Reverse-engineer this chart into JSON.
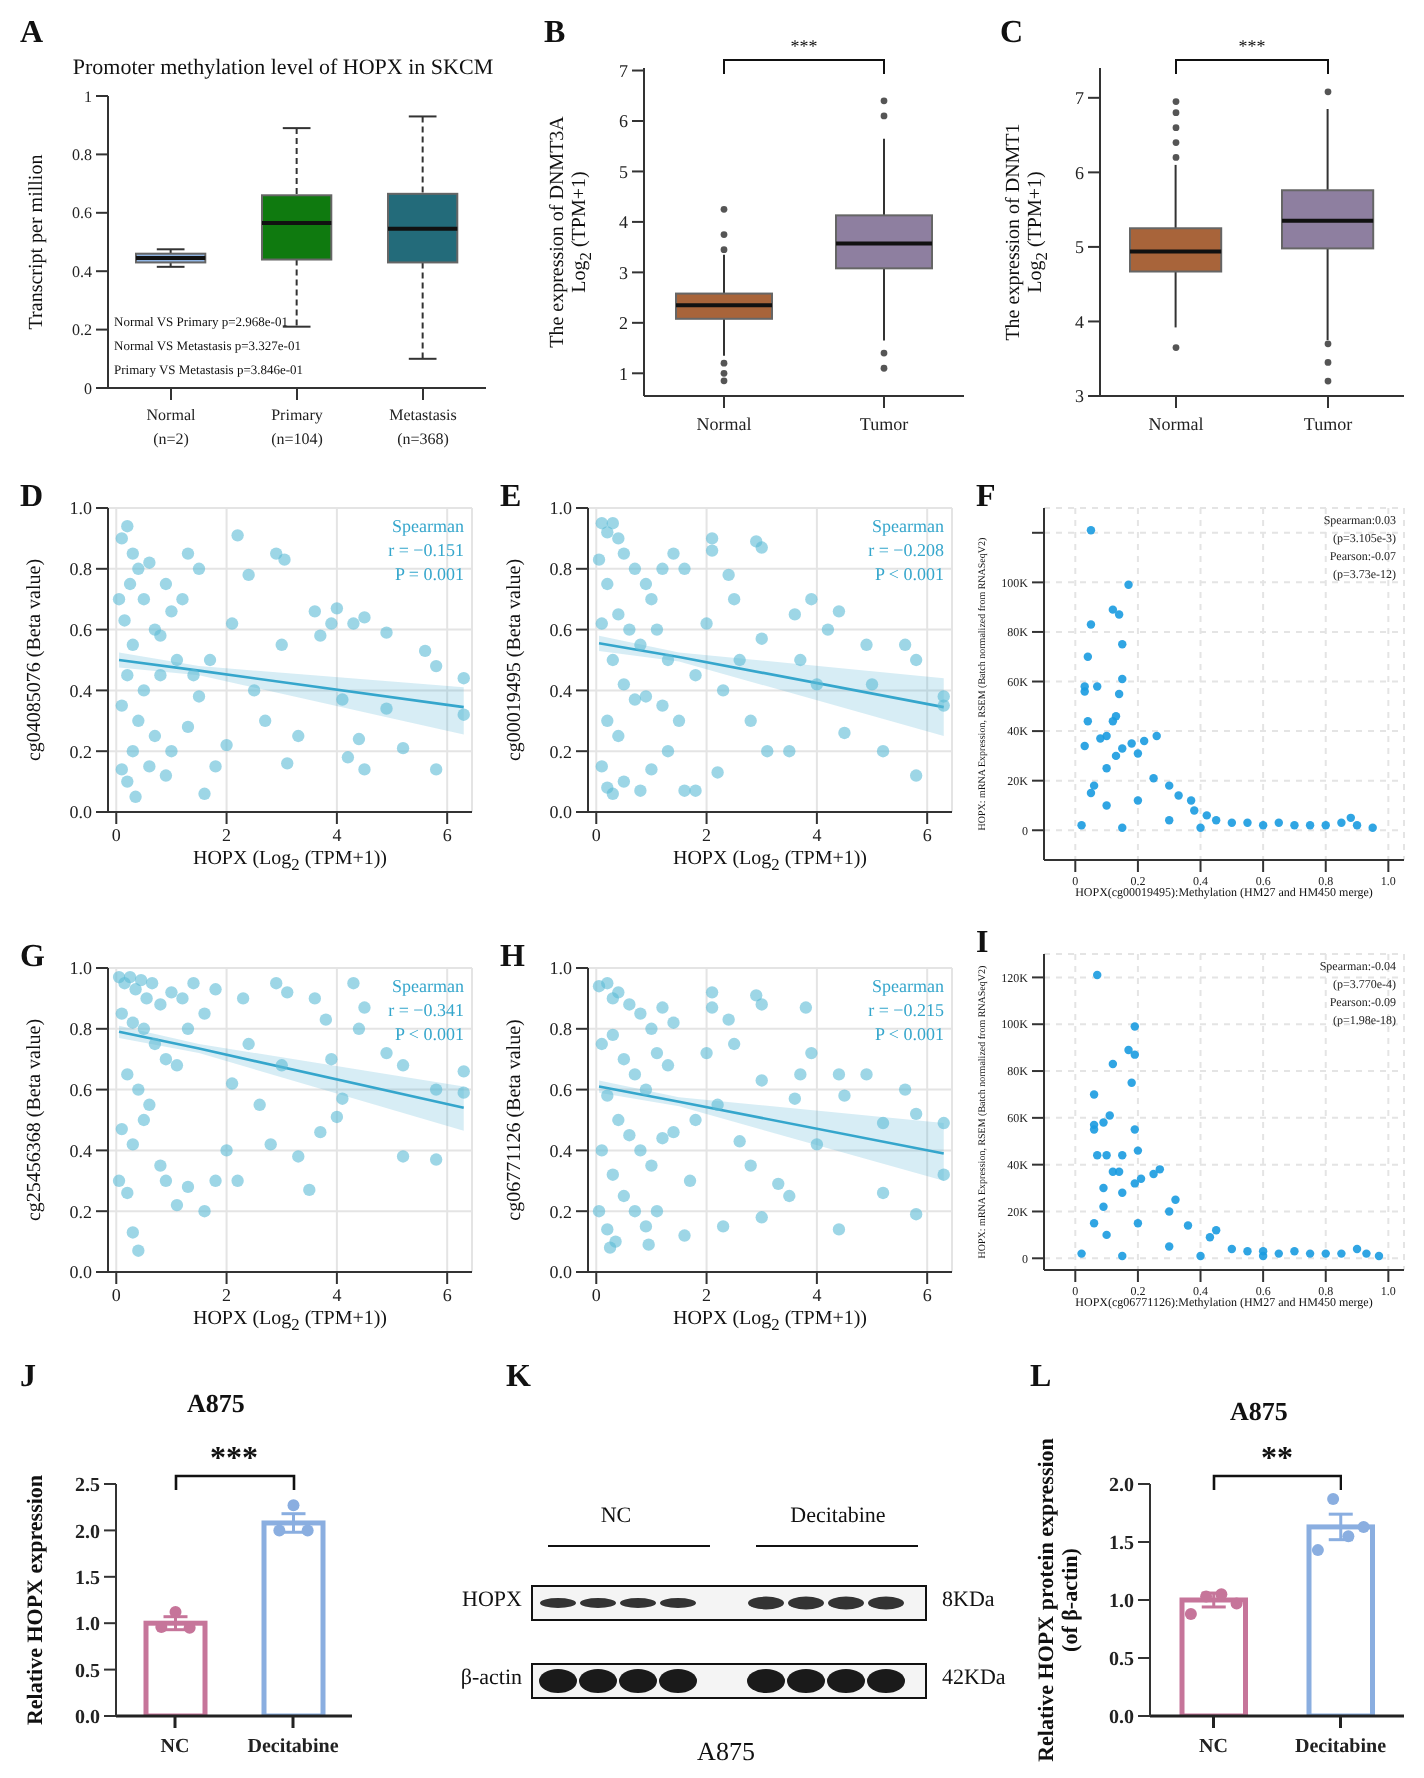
{
  "chart_data": [
    {
      "type": "box",
      "title": "Promoter methylation level of HOPX in SKCM",
      "ylabel": "Transcript per million",
      "annotations": [
        "A",
        "Normal VS Primary      p=2.968e-01",
        "Normal VS Metastasis  p=3.327e-01",
        "Primary VS Metastasis p=3.846e-01"
      ],
      "categories": [
        "Normal\n(n=2)",
        "Primary\n(n=104)",
        "Metastasis\n(n=368)"
      ],
      "colors": [
        "#8fb4e3",
        "#0f7a0f",
        "#236b7a"
      ],
      "line_style": "dashed",
      "ylim": [
        0,
        1
      ],
      "yticks": [
        0,
        0.2,
        0.4,
        0.6,
        0.8,
        1
      ],
      "boxes": [
        {
          "low": 0.415,
          "q1": 0.43,
          "median": 0.445,
          "q3": 0.46,
          "high": 0.475
        },
        {
          "low": 0.21,
          "q1": 0.44,
          "median": 0.565,
          "q3": 0.66,
          "high": 0.89
        },
        {
          "low": 0.1,
          "q1": 0.43,
          "median": 0.545,
          "q3": 0.665,
          "high": 0.93
        }
      ]
    },
    {
      "type": "box",
      "ylabel": "The expression  of DNMT3A\nLog$_{2}$ (TPM+1)",
      "annotations": [
        "B",
        "***"
      ],
      "categories": [
        "Normal",
        "Tumor"
      ],
      "colors": [
        "#a8643a",
        "#8e7fa0"
      ],
      "ylim": [
        0.55,
        7.05
      ],
      "yticks": [
        1,
        2,
        3,
        4,
        5,
        6,
        7
      ],
      "boxes": [
        {
          "low": 1.35,
          "q1": 2.08,
          "median": 2.35,
          "q3": 2.58,
          "high": 3.35,
          "outliers": [
            3.45,
            3.75,
            4.25,
            1.2,
            1.0,
            0.85
          ]
        },
        {
          "low": 1.65,
          "q1": 3.08,
          "median": 3.57,
          "q3": 4.13,
          "high": 5.65,
          "outliers": [
            6.1,
            6.4,
            1.4,
            1.1
          ]
        }
      ]
    },
    {
      "type": "box",
      "ylabel": "The expression  of DNMT1\nLog$_{2}$ (TPM+1)",
      "annotations": [
        "C",
        "***"
      ],
      "categories": [
        "Normal",
        "Tumor"
      ],
      "colors": [
        "#a8643a",
        "#8e7fa0"
      ],
      "ylim": [
        3,
        7.4
      ],
      "yticks": [
        3,
        4,
        5,
        6,
        7
      ],
      "boxes": [
        {
          "low": 3.92,
          "q1": 4.67,
          "median": 4.94,
          "q3": 5.25,
          "high": 6.1,
          "outliers": [
            6.2,
            6.4,
            6.6,
            6.8,
            6.95,
            3.65
          ]
        },
        {
          "low": 3.75,
          "q1": 4.98,
          "median": 5.35,
          "q3": 5.76,
          "high": 6.85,
          "outliers": [
            7.08,
            3.7,
            3.45,
            3.2
          ]
        }
      ]
    },
    {
      "type": "scatter",
      "xlabel": "HOPX (Log$_{2}$ (TPM+1))",
      "ylabel": "cg04085076   (Beta  value)",
      "annotations": [
        "D",
        "Spearman",
        "r = −0.151",
        "P = 0.001"
      ],
      "grid": true,
      "xlim": [
        -0.15,
        6.45
      ],
      "xticks": [
        0,
        2,
        4,
        6
      ],
      "ylim": [
        0,
        1
      ],
      "yticks": [
        {
          "value": 0,
          "label": "0.0"
        },
        0.2,
        0.4,
        0.6,
        0.8,
        {
          "value": 1,
          "label": "1.0"
        }
      ],
      "series": [
        {
          "type": "scatter",
          "color": "#5bbad5",
          "x": [
            0.1,
            0.2,
            0.3,
            0.25,
            0.4,
            0.5,
            0.6,
            0.15,
            0.3,
            0.7,
            0.9,
            1.0,
            1.2,
            1.3,
            1.5,
            1.1,
            0.8,
            0.5,
            0.2,
            0.1,
            0.4,
            0.7,
            0.3,
            0.1,
            0.2,
            0.35,
            0.6,
            0.9,
            1.0,
            1.3,
            1.5,
            1.7,
            1.6,
            1.8,
            2.0,
            2.2,
            2.1,
            2.4,
            2.5,
            2.7,
            2.9,
            3.05,
            3.0,
            3.1,
            3.3,
            3.6,
            3.7,
            3.9,
            4.0,
            4.1,
            4.2,
            4.3,
            4.4,
            4.5,
            4.5,
            4.9,
            4.9,
            5.2,
            5.6,
            5.8,
            5.8,
            6.3,
            6.3,
            0.05,
            0.8,
            1.4
          ],
          "values": [
            0.9,
            0.94,
            0.85,
            0.75,
            0.8,
            0.7,
            0.82,
            0.63,
            0.55,
            0.6,
            0.75,
            0.66,
            0.7,
            0.85,
            0.8,
            0.5,
            0.45,
            0.4,
            0.45,
            0.35,
            0.3,
            0.25,
            0.2,
            0.14,
            0.1,
            0.05,
            0.15,
            0.12,
            0.2,
            0.28,
            0.38,
            0.5,
            0.06,
            0.15,
            0.22,
            0.91,
            0.62,
            0.78,
            0.4,
            0.3,
            0.85,
            0.83,
            0.55,
            0.16,
            0.25,
            0.66,
            0.58,
            0.62,
            0.67,
            0.37,
            0.18,
            0.62,
            0.24,
            0.64,
            0.14,
            0.59,
            0.34,
            0.21,
            0.53,
            0.48,
            0.14,
            0.44,
            0.32,
            0.7,
            0.58,
            0.45
          ]
        },
        {
          "type": "line",
          "color": "#35a6cc",
          "x": [
            0.05,
            1.5,
            6.3
          ],
          "values": [
            0.5,
            0.465,
            0.345
          ],
          "lower": [
            0.475,
            0.45,
            0.255
          ],
          "upper": [
            0.525,
            0.48,
            0.41
          ]
        }
      ]
    },
    {
      "type": "scatter",
      "xlabel": "HOPX (Log$_{2}$ (TPM+1))",
      "ylabel": "cg00019495   (Beta  value)",
      "annotations": [
        "E",
        "Spearman",
        "r = −0.208",
        "P < 0.001"
      ],
      "grid": true,
      "xlim": [
        -0.15,
        6.45
      ],
      "xticks": [
        0,
        2,
        4,
        6
      ],
      "ylim": [
        0,
        1
      ],
      "yticks": [
        {
          "value": 0,
          "label": "0.0"
        },
        0.2,
        0.4,
        0.6,
        0.8,
        {
          "value": 1,
          "label": "1.0"
        }
      ],
      "series": [
        {
          "type": "scatter",
          "color": "#5bbad5",
          "x": [
            0.05,
            0.1,
            0.2,
            0.3,
            0.4,
            0.5,
            0.7,
            0.9,
            0.2,
            0.1,
            0.4,
            0.6,
            0.8,
            1.0,
            1.2,
            1.4,
            1.6,
            1.1,
            1.3,
            0.3,
            0.5,
            0.7,
            0.9,
            1.2,
            0.2,
            0.4,
            0.1,
            0.2,
            0.3,
            0.5,
            0.8,
            1.0,
            1.3,
            1.6,
            1.8,
            1.5,
            1.8,
            2.0,
            2.1,
            2.1,
            2.2,
            2.3,
            2.4,
            2.5,
            2.6,
            2.8,
            2.9,
            3.0,
            3.0,
            3.1,
            3.5,
            3.6,
            3.7,
            3.9,
            4.0,
            4.2,
            4.4,
            4.5,
            4.9,
            5.0,
            5.2,
            5.6,
            5.8,
            5.8,
            6.3,
            6.3
          ],
          "values": [
            0.83,
            0.95,
            0.92,
            0.95,
            0.9,
            0.85,
            0.8,
            0.75,
            0.75,
            0.62,
            0.65,
            0.6,
            0.55,
            0.7,
            0.8,
            0.85,
            0.8,
            0.6,
            0.5,
            0.5,
            0.42,
            0.37,
            0.38,
            0.35,
            0.3,
            0.25,
            0.15,
            0.08,
            0.06,
            0.1,
            0.07,
            0.14,
            0.2,
            0.07,
            0.07,
            0.3,
            0.45,
            0.62,
            0.9,
            0.86,
            0.13,
            0.4,
            0.78,
            0.7,
            0.5,
            0.3,
            0.89,
            0.87,
            0.57,
            0.2,
            0.2,
            0.65,
            0.5,
            0.7,
            0.42,
            0.6,
            0.66,
            0.26,
            0.55,
            0.42,
            0.2,
            0.55,
            0.5,
            0.12,
            0.38,
            0.35
          ]
        },
        {
          "type": "line",
          "color": "#35a6cc",
          "x": [
            0.05,
            1.5,
            6.3
          ],
          "values": [
            0.555,
            0.51,
            0.345
          ],
          "lower": [
            0.53,
            0.495,
            0.25
          ],
          "upper": [
            0.58,
            0.525,
            0.44
          ]
        }
      ]
    },
    {
      "type": "scatter",
      "xlabel": "HOPX(cg00019495):Methylation (HM27 and HM450 merge)",
      "ylabel": "HOPX: mRNA Expression, RSEM (Batch normalized from RNASeqV2)",
      "annotations": [
        "F",
        "Spearman:0.03",
        "(p=3.105e-3)",
        "Pearson:-0.07",
        "(p=3.73e-12)"
      ],
      "grid": true,
      "xlim": [
        -0.1,
        1.05
      ],
      "xticks": [
        0,
        0.2,
        0.4,
        0.6,
        0.8,
        {
          "value": 1,
          "label": "1.0"
        }
      ],
      "ylim": [
        -12000,
        130000
      ],
      "yticks": [
        0,
        {
          "value": 20000,
          "label": "20K"
        },
        {
          "value": 40000,
          "label": "40K"
        },
        {
          "value": 60000,
          "label": "60K"
        },
        {
          "value": 80000,
          "label": "80K"
        },
        {
          "value": 100000,
          "label": "100K"
        },
        {
          "value": 120000,
          "label": null
        }
      ],
      "series": [
        {
          "type": "scatter",
          "color": "#1a9be0",
          "x": [
            0.05,
            0.17,
            0.12,
            0.14,
            0.05,
            0.15,
            0.04,
            0.15,
            0.03,
            0.07,
            0.03,
            0.14,
            0.13,
            0.04,
            0.12,
            0.1,
            0.08,
            0.03,
            0.26,
            0.18,
            0.22,
            0.15,
            0.2,
            0.13,
            0.1,
            0.25,
            0.3,
            0.06,
            0.05,
            0.33,
            0.37,
            0.38,
            0.42,
            0.02,
            0.1,
            0.2,
            0.45,
            0.5,
            0.55,
            0.6,
            0.65,
            0.7,
            0.75,
            0.8,
            0.85,
            0.88,
            0.9,
            0.95,
            0.3,
            0.15,
            0.4
          ],
          "values": [
            121000,
            99000,
            89000,
            87000,
            83000,
            75000,
            70000,
            61000,
            58000,
            58000,
            56000,
            55000,
            46000,
            44000,
            44000,
            38000,
            37000,
            34000,
            38000,
            35000,
            36000,
            33000,
            31000,
            30000,
            25000,
            21000,
            18000,
            18000,
            15000,
            14000,
            12000,
            8000,
            6000,
            2000,
            10000,
            12000,
            4000,
            3000,
            3000,
            2000,
            3000,
            2000,
            2000,
            2000,
            3000,
            5000,
            2000,
            1000,
            4000,
            1000,
            1000
          ]
        }
      ]
    },
    {
      "type": "scatter",
      "xlabel": "HOPX (Log$_{2}$ (TPM+1))",
      "ylabel": "cg25456368   (Beta  value)",
      "annotations": [
        "G",
        "Spearman",
        "r = −0.341",
        "P < 0.001"
      ],
      "grid": true,
      "xlim": [
        -0.15,
        6.45
      ],
      "xticks": [
        0,
        2,
        4,
        6
      ],
      "ylim": [
        0,
        1
      ],
      "yticks": [
        {
          "value": 0,
          "label": "0.0"
        },
        0.2,
        0.4,
        0.6,
        0.8,
        {
          "value": 1,
          "label": "1.0"
        }
      ],
      "series": [
        {
          "type": "scatter",
          "color": "#5bbad5",
          "x": [
            0.05,
            0.15,
            0.25,
            0.35,
            0.45,
            0.55,
            0.65,
            0.8,
            1.0,
            1.2,
            1.4,
            0.1,
            0.3,
            0.5,
            0.7,
            0.9,
            1.1,
            1.3,
            1.6,
            1.8,
            0.2,
            0.4,
            0.6,
            0.1,
            0.3,
            0.5,
            0.8,
            0.9,
            1.1,
            1.3,
            0.2,
            0.3,
            0.4,
            0.05,
            1.6,
            1.8,
            2.0,
            2.1,
            2.2,
            2.3,
            2.4,
            2.6,
            2.8,
            2.9,
            3.0,
            3.1,
            3.3,
            3.5,
            3.6,
            3.7,
            3.8,
            3.9,
            4.0,
            4.1,
            4.3,
            4.4,
            4.5,
            4.9,
            5.2,
            5.2,
            5.8,
            5.8,
            6.3,
            6.3
          ],
          "values": [
            0.97,
            0.95,
            0.97,
            0.93,
            0.96,
            0.9,
            0.95,
            0.88,
            0.92,
            0.9,
            0.95,
            0.85,
            0.82,
            0.8,
            0.75,
            0.7,
            0.68,
            0.8,
            0.85,
            0.93,
            0.65,
            0.6,
            0.55,
            0.47,
            0.42,
            0.5,
            0.35,
            0.3,
            0.22,
            0.28,
            0.26,
            0.13,
            0.07,
            0.3,
            0.2,
            0.3,
            0.4,
            0.62,
            0.3,
            0.9,
            0.75,
            0.55,
            0.42,
            0.95,
            0.68,
            0.92,
            0.38,
            0.27,
            0.9,
            0.46,
            0.83,
            0.7,
            0.51,
            0.57,
            0.95,
            0.8,
            0.87,
            0.72,
            0.38,
            0.68,
            0.6,
            0.37,
            0.66,
            0.59
          ]
        },
        {
          "type": "line",
          "color": "#35a6cc",
          "x": [
            0.05,
            1.5,
            6.3
          ],
          "values": [
            0.79,
            0.735,
            0.54
          ],
          "lower": [
            0.77,
            0.72,
            0.465
          ],
          "upper": [
            0.81,
            0.75,
            0.61
          ]
        }
      ]
    },
    {
      "type": "scatter",
      "xlabel": "HOPX (Log$_{2}$ (TPM+1))",
      "ylabel": "cg06771126   (Beta  value)",
      "annotations": [
        "H",
        "Spearman",
        "r = −0.215",
        "P < 0.001"
      ],
      "grid": true,
      "xlim": [
        -0.15,
        6.45
      ],
      "xticks": [
        0,
        2,
        4,
        6
      ],
      "ylim": [
        0,
        1
      ],
      "yticks": [
        {
          "value": 0,
          "label": "0.0"
        },
        0.2,
        0.4,
        0.6,
        0.8,
        {
          "value": 1,
          "label": "1.0"
        }
      ],
      "series": [
        {
          "type": "scatter",
          "color": "#5bbad5",
          "x": [
            0.05,
            0.2,
            0.3,
            0.4,
            0.6,
            0.8,
            1.0,
            1.2,
            1.4,
            0.1,
            0.3,
            0.5,
            0.7,
            0.9,
            1.1,
            1.3,
            0.2,
            0.4,
            0.6,
            0.8,
            1.0,
            1.2,
            1.4,
            0.1,
            0.3,
            0.5,
            0.7,
            0.9,
            1.1,
            0.2,
            0.25,
            0.35,
            0.95,
            0.05,
            1.6,
            1.7,
            1.8,
            2.0,
            2.1,
            2.1,
            2.2,
            2.3,
            2.4,
            2.5,
            2.6,
            2.8,
            2.9,
            3.0,
            3.0,
            3.0,
            3.3,
            3.5,
            3.6,
            3.7,
            3.8,
            3.9,
            4.0,
            4.4,
            4.4,
            4.5,
            4.9,
            5.2,
            5.2,
            5.6,
            5.8,
            5.8,
            6.3,
            6.3
          ],
          "values": [
            0.94,
            0.95,
            0.9,
            0.92,
            0.88,
            0.85,
            0.8,
            0.87,
            0.82,
            0.75,
            0.78,
            0.7,
            0.65,
            0.6,
            0.72,
            0.68,
            0.58,
            0.5,
            0.45,
            0.4,
            0.35,
            0.44,
            0.46,
            0.4,
            0.32,
            0.25,
            0.2,
            0.15,
            0.2,
            0.14,
            0.08,
            0.1,
            0.09,
            0.2,
            0.12,
            0.3,
            0.5,
            0.72,
            0.92,
            0.87,
            0.55,
            0.15,
            0.83,
            0.75,
            0.43,
            0.35,
            0.91,
            0.88,
            0.63,
            0.18,
            0.29,
            0.25,
            0.57,
            0.65,
            0.87,
            0.72,
            0.42,
            0.65,
            0.14,
            0.58,
            0.65,
            0.26,
            0.49,
            0.6,
            0.52,
            0.19,
            0.49,
            0.32
          ]
        },
        {
          "type": "line",
          "color": "#35a6cc",
          "x": [
            0.05,
            1.5,
            6.3
          ],
          "values": [
            0.61,
            0.56,
            0.39
          ],
          "lower": [
            0.59,
            0.545,
            0.3
          ],
          "upper": [
            0.63,
            0.575,
            0.49
          ]
        }
      ]
    },
    {
      "type": "scatter",
      "xlabel": "HOPX(cg06771126):Methylation (HM27 and HM450 merge)",
      "ylabel": "HOPX: mRNA Expression, RSEM (Batch normalized from RNASeqV2)",
      "annotations": [
        "I",
        "Spearman:-0.04",
        "(p=3.770e-4)",
        "Pearson:-0.09",
        "(p=1.98e-18)"
      ],
      "grid": true,
      "xlim": [
        -0.1,
        1.05
      ],
      "xticks": [
        0,
        0.2,
        0.4,
        0.6,
        0.8,
        {
          "value": 1,
          "label": "1.0"
        }
      ],
      "ylim": [
        -5000,
        130000
      ],
      "yticks": [
        0,
        {
          "value": 20000,
          "label": "20K"
        },
        {
          "value": 40000,
          "label": "40K"
        },
        {
          "value": 60000,
          "label": "60K"
        },
        {
          "value": 80000,
          "label": "80K"
        },
        {
          "value": 100000,
          "label": "100K"
        },
        {
          "value": 120000,
          "label": "120K"
        }
      ],
      "series": [
        {
          "type": "scatter",
          "color": "#1a9be0",
          "x": [
            0.07,
            0.19,
            0.17,
            0.19,
            0.12,
            0.18,
            0.06,
            0.11,
            0.09,
            0.06,
            0.06,
            0.19,
            0.2,
            0.07,
            0.1,
            0.15,
            0.12,
            0.14,
            0.27,
            0.25,
            0.19,
            0.21,
            0.09,
            0.15,
            0.32,
            0.09,
            0.3,
            0.06,
            0.36,
            0.45,
            0.43,
            0.02,
            0.1,
            0.2,
            0.5,
            0.55,
            0.6,
            0.65,
            0.7,
            0.75,
            0.8,
            0.85,
            0.9,
            0.93,
            0.97,
            0.3,
            0.15,
            0.4,
            0.6
          ],
          "values": [
            121000,
            99000,
            89000,
            87000,
            83000,
            75000,
            70000,
            61000,
            58000,
            57000,
            55000,
            55000,
            46000,
            44000,
            44000,
            44000,
            37000,
            37000,
            38000,
            36000,
            32000,
            34000,
            30000,
            28000,
            25000,
            22000,
            20000,
            15000,
            14000,
            12000,
            9000,
            2000,
            10000,
            15000,
            4000,
            3000,
            3000,
            2000,
            3000,
            2000,
            2000,
            2000,
            4000,
            2000,
            1000,
            5000,
            1000,
            1000,
            1000
          ]
        }
      ]
    },
    {
      "type": "bar",
      "title": "A875",
      "ylabel": "Relative HOPX expression",
      "annotations": [
        "J",
        "***"
      ],
      "categories": [
        "NC",
        "Decitabine"
      ],
      "ylim": [
        0,
        2.5
      ],
      "yticks": [
        {
          "value": 0,
          "label": "0.0"
        },
        0.5,
        {
          "value": 1,
          "label": "1.0"
        },
        1.5,
        {
          "value": 2,
          "label": "2.0"
        },
        2.5
      ],
      "series": [
        {
          "type": "bar",
          "colors": [
            "#c6759a",
            "#8aaee0"
          ],
          "values": [
            1.0,
            2.08
          ],
          "errors": [
            0.07,
            0.1
          ]
        },
        {
          "type": "scatter",
          "x": [
            "NC",
            "NC",
            "NC",
            "Decitabine",
            "Decitabine",
            "Decitabine"
          ],
          "values": [
            0.96,
            1.12,
            0.95,
            2.0,
            2.27,
            2.0
          ],
          "colors": [
            "#c6759a",
            "#c6759a",
            "#c6759a",
            "#8aaee0",
            "#8aaee0",
            "#8aaee0"
          ]
        }
      ]
    },
    {
      "type": "other",
      "annotations": [
        "K",
        "NC",
        "Decitabine",
        "HOPX",
        "β-actin",
        "8KDa",
        "42KDa",
        "A875"
      ]
    },
    {
      "type": "bar",
      "title": "A875",
      "ylabel": "Relative HOPX protein expression\n(of β-actin)",
      "annotations": [
        "L",
        "**"
      ],
      "categories": [
        "NC",
        "Decitabine"
      ],
      "ylim": [
        0,
        2
      ],
      "yticks": [
        {
          "value": 0,
          "label": "0.0"
        },
        0.5,
        {
          "value": 1,
          "label": "1.0"
        },
        1.5,
        {
          "value": 2,
          "label": "2.0"
        }
      ],
      "series": [
        {
          "type": "bar",
          "colors": [
            "#c6759a",
            "#8aaee0"
          ],
          "values": [
            1.0,
            1.63
          ],
          "errors": [
            0.06,
            0.11
          ]
        },
        {
          "type": "scatter",
          "x": [
            "NC",
            "NC",
            "NC",
            "NC",
            "Decitabine",
            "Decitabine",
            "Decitabine",
            "Decitabine"
          ],
          "values": [
            0.88,
            1.03,
            1.05,
            0.97,
            1.43,
            1.87,
            1.55,
            1.63
          ],
          "colors": [
            "#c6759a",
            "#c6759a",
            "#c6759a",
            "#c6759a",
            "#8aaee0",
            "#8aaee0",
            "#8aaee0",
            "#8aaee0"
          ]
        }
      ]
    }
  ]
}
